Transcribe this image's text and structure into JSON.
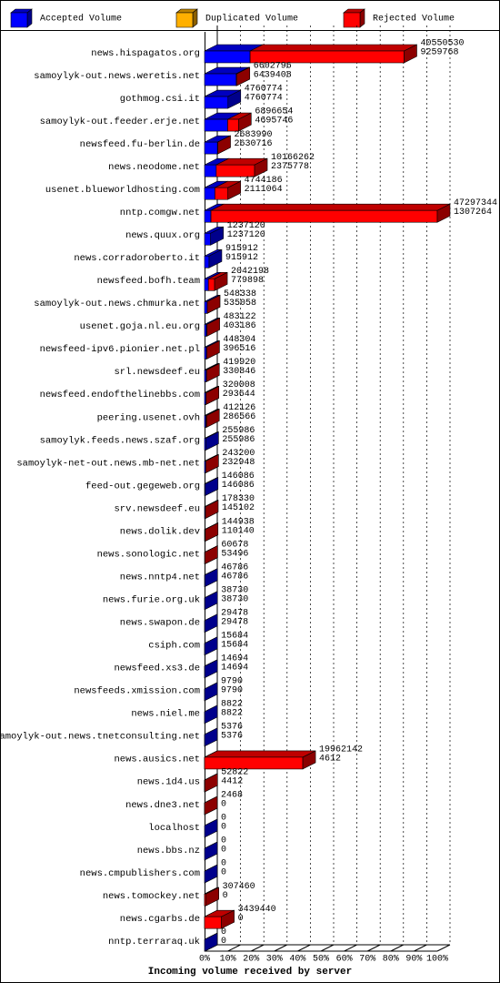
{
  "chart_data": {
    "type": "bar",
    "orientation": "horizontal",
    "legend": [
      {
        "name": "Accepted Volume",
        "color": "#0000ff"
      },
      {
        "name": "Duplicated Volume",
        "color": "#ffb000"
      },
      {
        "name": "Rejected Volume",
        "color": "#ff0000"
      }
    ],
    "x_label": "Incoming volume received by server",
    "categories": [
      "news.hispagatos.org",
      "samoylyk-out.news.weretis.net",
      "gothmog.csi.it",
      "samoylyk-out.feeder.erje.net",
      "newsfeed.fu-berlin.de",
      "news.neodome.net",
      "usenet.blueworldhosting.com",
      "nntp.comgw.net",
      "news.quux.org",
      "news.corradoroberto.it",
      "newsfeed.bofh.team",
      "samoylyk-out.news.chmurka.net",
      "usenet.goja.nl.eu.org",
      "newsfeed-ipv6.pionier.net.pl",
      "srl.newsdeef.eu",
      "newsfeed.endofthelinebbs.com",
      "peering.usenet.ovh",
      "samoylyk.feeds.news.szaf.org",
      "samoylyk-net-out.news.mb-net.net",
      "feed-out.gegeweb.org",
      "srv.newsdeef.eu",
      "news.dolik.dev",
      "news.sonologic.net",
      "news.nntp4.net",
      "news.furie.org.uk",
      "news.swapon.de",
      "csiph.com",
      "newsfeed.xs3.de",
      "newsfeeds.xmission.com",
      "news.niel.me",
      "samoylyk-out.news.tnetconsulting.net",
      "news.ausics.net",
      "news.1d4.us",
      "news.dne3.net",
      "localhost",
      "news.bbs.nz",
      "news.cmpublishers.com",
      "news.tomockey.net",
      "news.cgarbs.de",
      "nntp.terraraq.uk"
    ],
    "totals": [
      40550530,
      6602796,
      4760774,
      6896654,
      2683990,
      10166262,
      4744186,
      47297344,
      1237120,
      915912,
      2042198,
      548338,
      483122,
      448304,
      419920,
      320008,
      412126,
      255986,
      243200,
      146086,
      178330,
      144938,
      60678,
      46786,
      38730,
      29478,
      15684,
      14694,
      9790,
      8822,
      5376,
      19962142,
      52822,
      2468,
      0,
      0,
      0,
      307460,
      3439440,
      0
    ],
    "accepted": [
      9259768,
      6439408,
      4760774,
      4695746,
      2630716,
      2375778,
      2111064,
      1307264,
      1237120,
      915912,
      779898,
      535058,
      403186,
      396516,
      330846,
      293644,
      286566,
      255986,
      232948,
      146086,
      145102,
      110140,
      53496,
      46786,
      38730,
      29478,
      15684,
      14694,
      9790,
      8822,
      5376,
      4612,
      4412,
      0,
      0,
      0,
      0,
      0,
      0,
      0
    ],
    "xlim": [
      0,
      100
    ],
    "xticks": [
      {
        "value": 0,
        "label": "0%"
      },
      {
        "value": 10,
        "label": "10%"
      },
      {
        "value": 20,
        "label": "20%"
      },
      {
        "value": 30,
        "label": "30%"
      },
      {
        "value": 40,
        "label": "40%"
      },
      {
        "value": 50,
        "label": "50%"
      },
      {
        "value": 60,
        "label": "60%"
      },
      {
        "value": 70,
        "label": "70%"
      },
      {
        "value": 80,
        "label": "80%"
      },
      {
        "value": 90,
        "label": "90%"
      },
      {
        "value": 100,
        "label": "100%"
      }
    ],
    "grid": true
  }
}
